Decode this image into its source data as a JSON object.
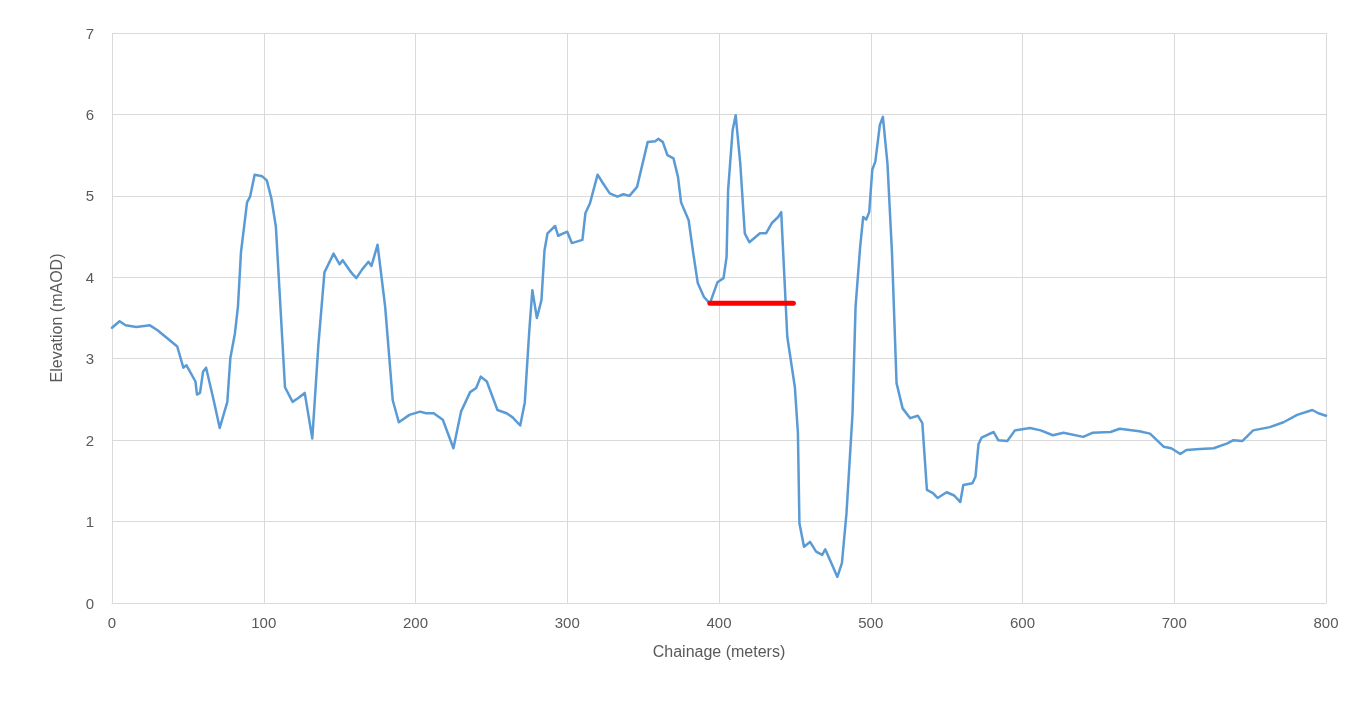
{
  "chart_data": {
    "type": "line",
    "xlabel": "Chainage (meters)",
    "ylabel": "Elevation (mAOD)",
    "xlim": [
      0,
      800
    ],
    "xticks": [
      0,
      100,
      200,
      300,
      400,
      500,
      600,
      700,
      800
    ],
    "ylim": [
      0,
      7
    ],
    "yticks": [
      0,
      1,
      2,
      3,
      4,
      5,
      6,
      7
    ],
    "grid": true,
    "marker": "none",
    "line_style": "solid",
    "series": [
      {
        "color": "#5b9bd5",
        "x": [
          0,
          5,
          9,
          16,
          25,
          30,
          43,
          47,
          49,
          55,
          56,
          58,
          60,
          62,
          67,
          71,
          76,
          78,
          81,
          83,
          85,
          89,
          91,
          94,
          99,
          102,
          105,
          108,
          114,
          119,
          123,
          127,
          132,
          136,
          140,
          146,
          150,
          152,
          158,
          161,
          165,
          169,
          171,
          175,
          180,
          185,
          189,
          196,
          203,
          207,
          212,
          218,
          225,
          230,
          236,
          240,
          243,
          247,
          254,
          260,
          264,
          269,
          272,
          275,
          277,
          280,
          283,
          285,
          287,
          292,
          294,
          300,
          303,
          310,
          312,
          315,
          320,
          323,
          328,
          333,
          337,
          341,
          346,
          353,
          358,
          360,
          363,
          366,
          370,
          373,
          375,
          380,
          383,
          386,
          390,
          394,
          399,
          403,
          405,
          406,
          409,
          411,
          414,
          417,
          420,
          427,
          431,
          435,
          439,
          441,
          445,
          450,
          452,
          453,
          456,
          460,
          464,
          468,
          470,
          474,
          478,
          481,
          484,
          488,
          490,
          493,
          495,
          497,
          499,
          501,
          503,
          506,
          508,
          511,
          514,
          517,
          521,
          526,
          531,
          534,
          537,
          541,
          544,
          550,
          555,
          559,
          561,
          567,
          569,
          571,
          573,
          581,
          584,
          590,
          595,
          605,
          612,
          620,
          627,
          640,
          646,
          658,
          664,
          677,
          684,
          693,
          698,
          704,
          708,
          717,
          726,
          735,
          739,
          745,
          752,
          763,
          772,
          781,
          791,
          795,
          800
        ],
        "values": [
          3.38,
          3.46,
          3.41,
          3.39,
          3.41,
          3.35,
          3.15,
          2.89,
          2.92,
          2.72,
          2.56,
          2.58,
          2.84,
          2.89,
          2.49,
          2.15,
          2.47,
          3.01,
          3.31,
          3.64,
          4.31,
          4.92,
          4.99,
          5.26,
          5.24,
          5.19,
          4.97,
          4.62,
          2.65,
          2.47,
          2.52,
          2.58,
          2.02,
          3.17,
          4.06,
          4.29,
          4.16,
          4.21,
          4.05,
          3.99,
          4.1,
          4.19,
          4.14,
          4.4,
          3.64,
          2.49,
          2.22,
          2.31,
          2.35,
          2.33,
          2.33,
          2.25,
          1.9,
          2.35,
          2.59,
          2.64,
          2.78,
          2.72,
          2.37,
          2.33,
          2.28,
          2.18,
          2.46,
          3.35,
          3.84,
          3.5,
          3.72,
          4.33,
          4.54,
          4.63,
          4.51,
          4.56,
          4.42,
          4.46,
          4.79,
          4.91,
          5.26,
          5.17,
          5.03,
          4.99,
          5.02,
          5.0,
          5.11,
          5.66,
          5.67,
          5.7,
          5.66,
          5.5,
          5.46,
          5.23,
          4.92,
          4.7,
          4.3,
          3.93,
          3.76,
          3.68,
          3.94,
          3.99,
          4.25,
          5.07,
          5.81,
          5.99,
          5.4,
          4.54,
          4.43,
          4.54,
          4.54,
          4.67,
          4.74,
          4.8,
          3.27,
          2.65,
          2.09,
          0.98,
          0.69,
          0.75,
          0.63,
          0.59,
          0.66,
          0.49,
          0.32,
          0.49,
          1.1,
          2.33,
          3.64,
          4.37,
          4.74,
          4.71,
          4.8,
          5.32,
          5.42,
          5.87,
          5.97,
          5.4,
          4.3,
          2.7,
          2.39,
          2.27,
          2.3,
          2.21,
          1.39,
          1.35,
          1.29,
          1.36,
          1.32,
          1.24,
          1.45,
          1.47,
          1.55,
          1.95,
          2.03,
          2.1,
          2.0,
          1.99,
          2.12,
          2.15,
          2.12,
          2.06,
          2.09,
          2.04,
          2.09,
          2.1,
          2.14,
          2.11,
          2.08,
          1.92,
          1.9,
          1.83,
          1.88,
          1.89,
          1.9,
          1.96,
          2.0,
          1.99,
          2.12,
          2.16,
          2.22,
          2.31,
          2.37,
          2.33,
          2.3
        ]
      },
      {
        "color": "#ff0000",
        "x": [
          394,
          449
        ],
        "values": [
          3.68,
          3.68
        ]
      }
    ]
  }
}
